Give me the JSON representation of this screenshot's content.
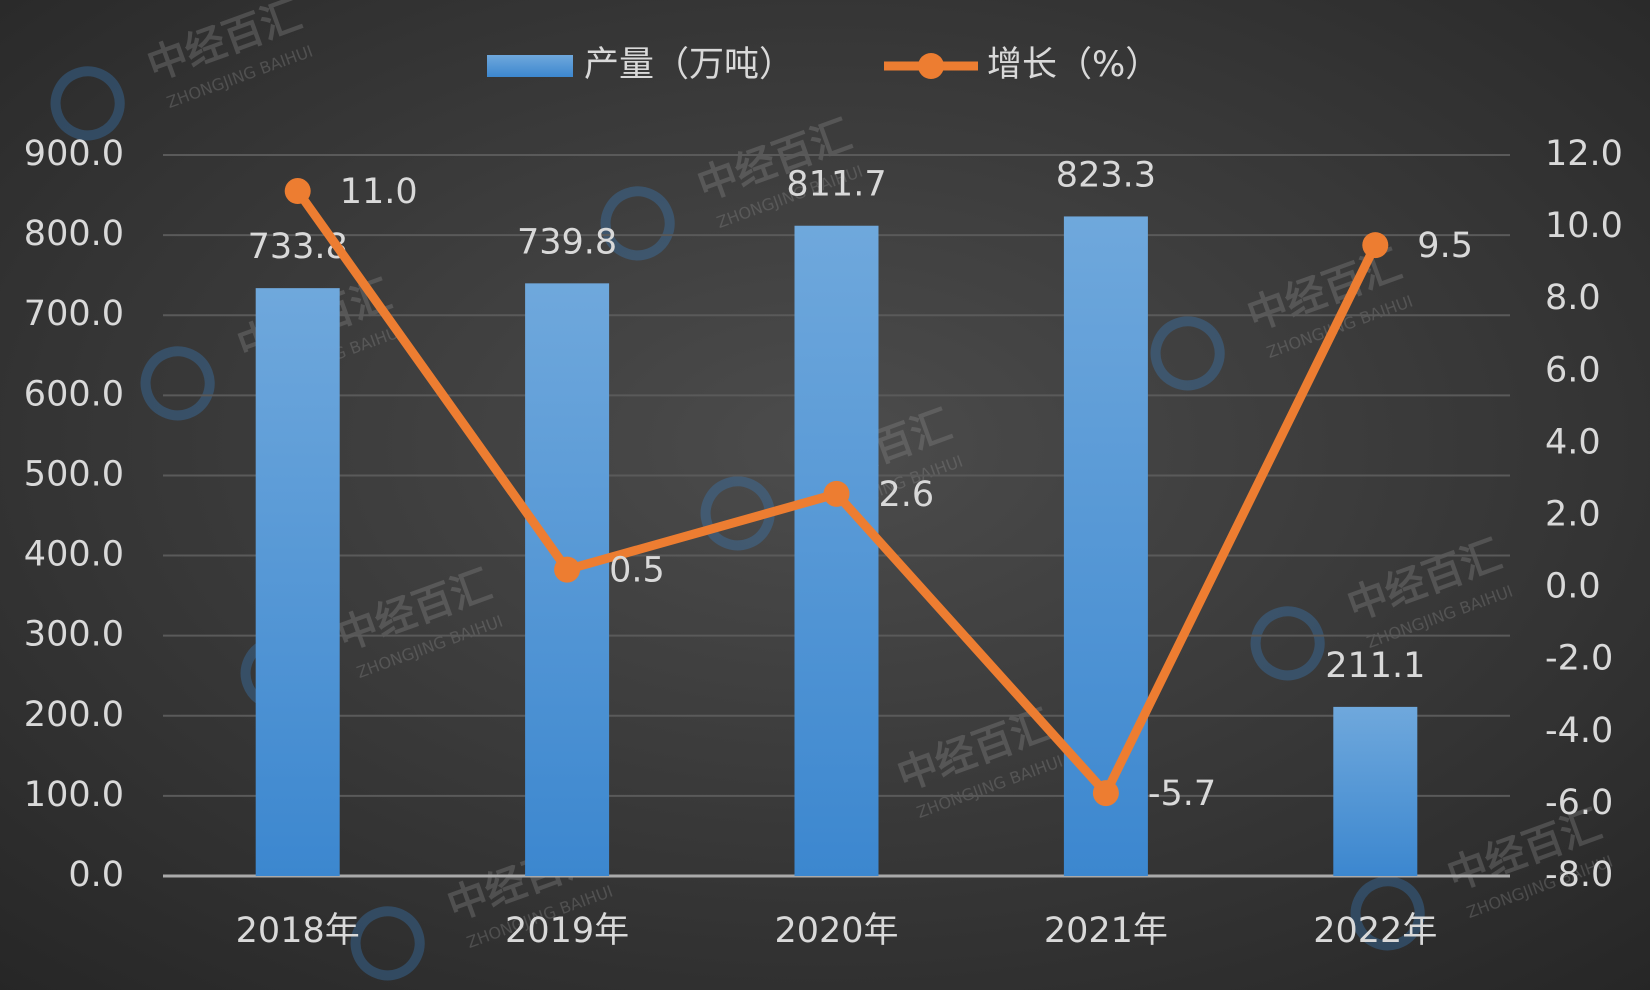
{
  "chart_data": {
    "type": "bar-line",
    "categories": [
      "2018年",
      "2019年",
      "2020年",
      "2021年",
      "2022年"
    ],
    "series": [
      {
        "name": "产量（万吨）",
        "color": "#5b9bd5",
        "type": "bar",
        "values": [
          733.8,
          739.8,
          811.7,
          823.3,
          211.1
        ]
      },
      {
        "name": "增长（%）",
        "color": "#ed7d31",
        "type": "line",
        "axis": "y2",
        "values": [
          11.0,
          0.5,
          2.6,
          -5.7,
          9.5
        ],
        "value_labels": [
          "11.0",
          "0.5",
          "2.6",
          "-5.7",
          "9.5"
        ]
      }
    ],
    "ylim": [
      0,
      900
    ],
    "yticks": [
      {
        "value": 0,
        "label": "0.0"
      },
      {
        "value": 100,
        "label": "100.0"
      },
      {
        "value": 200,
        "label": "200.0"
      },
      {
        "value": 300,
        "label": "300.0"
      },
      {
        "value": 400,
        "label": "400.0"
      },
      {
        "value": 500,
        "label": "500.0"
      },
      {
        "value": 600,
        "label": "600.0"
      },
      {
        "value": 700,
        "label": "700.0"
      },
      {
        "value": 800,
        "label": "800.0"
      },
      {
        "value": 900,
        "label": "900.0"
      }
    ],
    "y2lim": [
      -8,
      12
    ],
    "y2ticks": [
      {
        "value": -8,
        "label": "-8.0"
      },
      {
        "value": -6,
        "label": "-6.0"
      },
      {
        "value": -4,
        "label": "-4.0"
      },
      {
        "value": -2,
        "label": "-2.0"
      },
      {
        "value": 0,
        "label": "0.0"
      },
      {
        "value": 2,
        "label": "2.0"
      },
      {
        "value": 4,
        "label": "4.0"
      },
      {
        "value": 6,
        "label": "6.0"
      },
      {
        "value": 8,
        "label": "8.0"
      },
      {
        "value": 10,
        "label": "10.0"
      },
      {
        "value": 12,
        "label": "12.0"
      }
    ],
    "grid": true,
    "legend": "top",
    "watermark": {
      "text": "中经百汇",
      "subtext": "ZHONGJING BAIHUI"
    }
  }
}
